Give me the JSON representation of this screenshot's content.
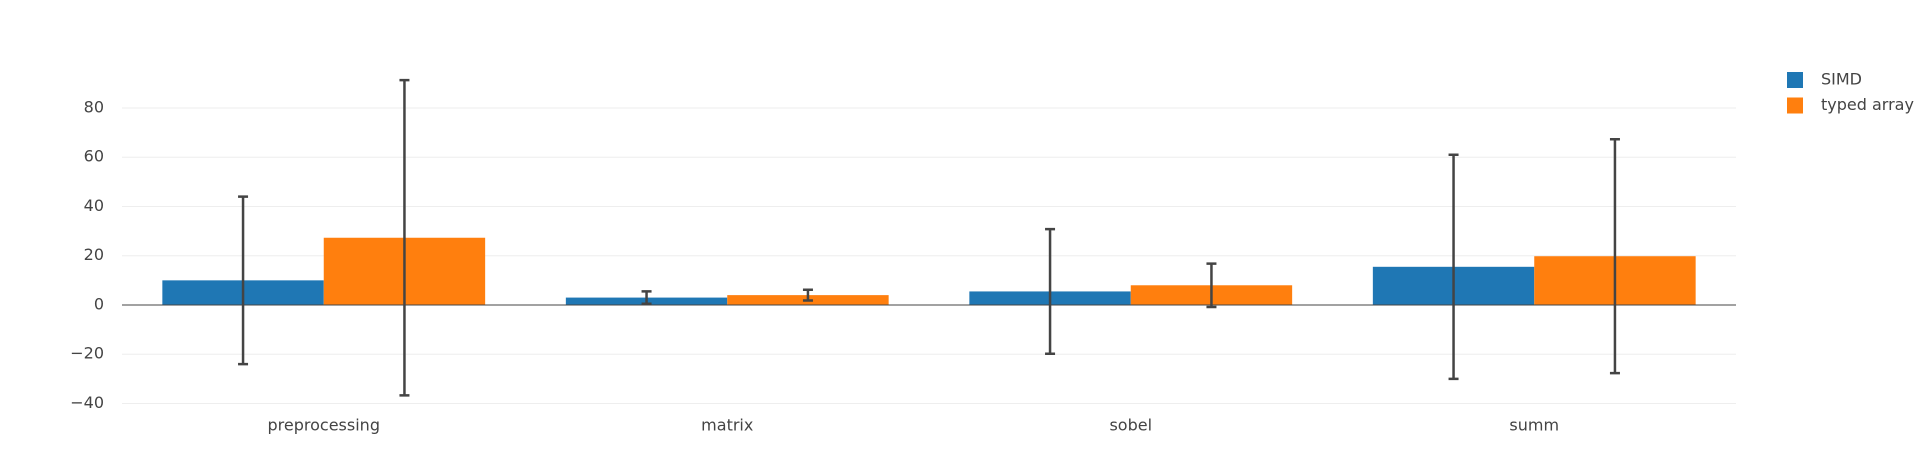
{
  "chart_data": {
    "type": "bar",
    "categories": [
      "preprocessing",
      "matrix",
      "sobel",
      "summ"
    ],
    "series": [
      {
        "name": "SIMD",
        "color": "#1f77b4",
        "values": [
          10,
          3,
          5.5,
          15.5
        ],
        "errors": [
          34,
          2.5,
          25.3,
          45.5
        ]
      },
      {
        "name": "typed array",
        "color": "#ff7f0e",
        "values": [
          27.3,
          4,
          8,
          19.8
        ],
        "errors": [
          64,
          2.2,
          8.8,
          47.5
        ]
      }
    ],
    "ylim": [
      -42,
      94
    ],
    "yticks": [
      {
        "value": -40,
        "label": "−40"
      },
      {
        "value": -20,
        "label": "−20"
      },
      0,
      20,
      40,
      60,
      80
    ],
    "grid": true
  }
}
